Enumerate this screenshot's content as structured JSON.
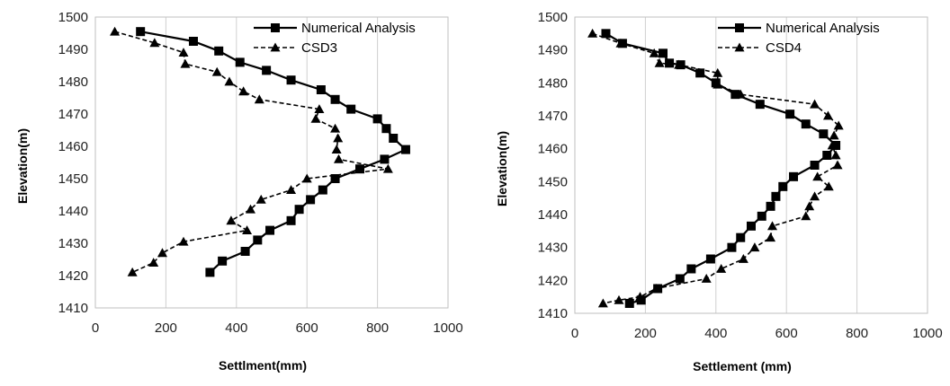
{
  "chart_data": [
    {
      "type": "line",
      "title": "",
      "xlabel": "Settlment(mm)",
      "ylabel": "Elevation(m)",
      "xlim": [
        0,
        1000
      ],
      "ylim": [
        1410,
        1500
      ],
      "x_ticks": [
        "0",
        "200",
        "400",
        "600",
        "800",
        "1000"
      ],
      "y_ticks": [
        "1410",
        "1420",
        "1430",
        "1440",
        "1450",
        "1460",
        "1470",
        "1480",
        "1490",
        "1500"
      ],
      "grid": "vertical",
      "legend": "top-right",
      "series": [
        {
          "name": "Numerical Analysis",
          "style": "solid-square",
          "color": "#000000",
          "points": [
            [
              128,
              1495.5
            ],
            [
              278,
              1492.5
            ],
            [
              350,
              1489.5
            ],
            [
              410,
              1486
            ],
            [
              485,
              1483.5
            ],
            [
              555,
              1480.5
            ],
            [
              640,
              1477.5
            ],
            [
              680,
              1474.5
            ],
            [
              725,
              1471.5
            ],
            [
              800,
              1468.5
            ],
            [
              825,
              1465.5
            ],
            [
              845,
              1462.5
            ],
            [
              880,
              1459
            ],
            [
              820,
              1456
            ],
            [
              750,
              1453
            ],
            [
              680,
              1450
            ],
            [
              645,
              1446.5
            ],
            [
              610,
              1443.5
            ],
            [
              578,
              1440.5
            ],
            [
              555,
              1437
            ],
            [
              495,
              1434
            ],
            [
              460,
              1431
            ],
            [
              425,
              1427.5
            ],
            [
              360,
              1424.5
            ],
            [
              325,
              1421
            ]
          ]
        },
        {
          "name": "CSD3",
          "style": "dashed-triangle",
          "color": "#000000",
          "points": [
            [
              55,
              1495.5
            ],
            [
              168,
              1492
            ],
            [
              250,
              1489
            ],
            [
              255,
              1485.5
            ],
            [
              345,
              1483
            ],
            [
              380,
              1480
            ],
            [
              420,
              1477
            ],
            [
              465,
              1474.5
            ],
            [
              635,
              1471.5
            ],
            [
              625,
              1468.5
            ],
            [
              680,
              1465.5
            ],
            [
              688,
              1462.5
            ],
            [
              684,
              1459
            ],
            [
              690,
              1456
            ],
            [
              830,
              1453
            ],
            [
              600,
              1450
            ],
            [
              555,
              1446.5
            ],
            [
              470,
              1443.5
            ],
            [
              440,
              1440.5
            ],
            [
              385,
              1437
            ],
            [
              430,
              1434
            ],
            [
              250,
              1430.5
            ],
            [
              190,
              1427
            ],
            [
              165,
              1424
            ],
            [
              105,
              1421
            ]
          ]
        }
      ]
    },
    {
      "type": "line",
      "title": "",
      "xlabel": "Settlement (mm)",
      "ylabel": "Elevation(m)",
      "xlim": [
        0,
        1000
      ],
      "ylim": [
        1410,
        1500
      ],
      "x_ticks": [
        "0",
        "200",
        "400",
        "600",
        "800",
        "1000"
      ],
      "y_ticks": [
        "1410",
        "1420",
        "1430",
        "1440",
        "1450",
        "1460",
        "1470",
        "1480",
        "1490",
        "1500"
      ],
      "grid": "vertical",
      "legend": "top-right",
      "series": [
        {
          "name": "Numerical Analysis",
          "style": "solid-square",
          "color": "#000000",
          "points": [
            [
              88,
              1495
            ],
            [
              135,
              1492
            ],
            [
              250,
              1489
            ],
            [
              268,
              1486
            ],
            [
              300,
              1485.5
            ],
            [
              355,
              1483
            ],
            [
              400,
              1480
            ],
            [
              455,
              1476.5
            ],
            [
              525,
              1473.5
            ],
            [
              610,
              1470.5
            ],
            [
              655,
              1467.5
            ],
            [
              705,
              1464.5
            ],
            [
              740,
              1461
            ],
            [
              715,
              1458
            ],
            [
              680,
              1455
            ],
            [
              620,
              1451.5
            ],
            [
              590,
              1448.5
            ],
            [
              570,
              1445.5
            ],
            [
              555,
              1442.5
            ],
            [
              530,
              1439.5
            ],
            [
              500,
              1436.5
            ],
            [
              470,
              1433
            ],
            [
              445,
              1430
            ],
            [
              385,
              1426.5
            ],
            [
              330,
              1423.5
            ],
            [
              298,
              1420.5
            ],
            [
              235,
              1417.5
            ],
            [
              188,
              1414
            ],
            [
              155,
              1413
            ]
          ]
        },
        {
          "name": "CSD4",
          "style": "dashed-triangle",
          "color": "#000000",
          "points": [
            [
              50,
              1495
            ],
            [
              130,
              1492
            ],
            [
              225,
              1489
            ],
            [
              240,
              1486
            ],
            [
              295,
              1485.5
            ],
            [
              405,
              1483
            ],
            [
              405,
              1479.5
            ],
            [
              470,
              1476.5
            ],
            [
              680,
              1473.5
            ],
            [
              718,
              1470
            ],
            [
              748,
              1467
            ],
            [
              735,
              1464
            ],
            [
              730,
              1461
            ],
            [
              740,
              1458
            ],
            [
              745,
              1455
            ],
            [
              688,
              1451.5
            ],
            [
              720,
              1448.5
            ],
            [
              680,
              1445.5
            ],
            [
              665,
              1442.5
            ],
            [
              655,
              1439.5
            ],
            [
              560,
              1436.5
            ],
            [
              555,
              1433
            ],
            [
              510,
              1430
            ],
            [
              478,
              1426.5
            ],
            [
              415,
              1423.5
            ],
            [
              373,
              1420.5
            ],
            [
              230,
              1417.5
            ],
            [
              185,
              1415
            ],
            [
              125,
              1414
            ],
            [
              80,
              1413
            ]
          ]
        }
      ]
    }
  ]
}
